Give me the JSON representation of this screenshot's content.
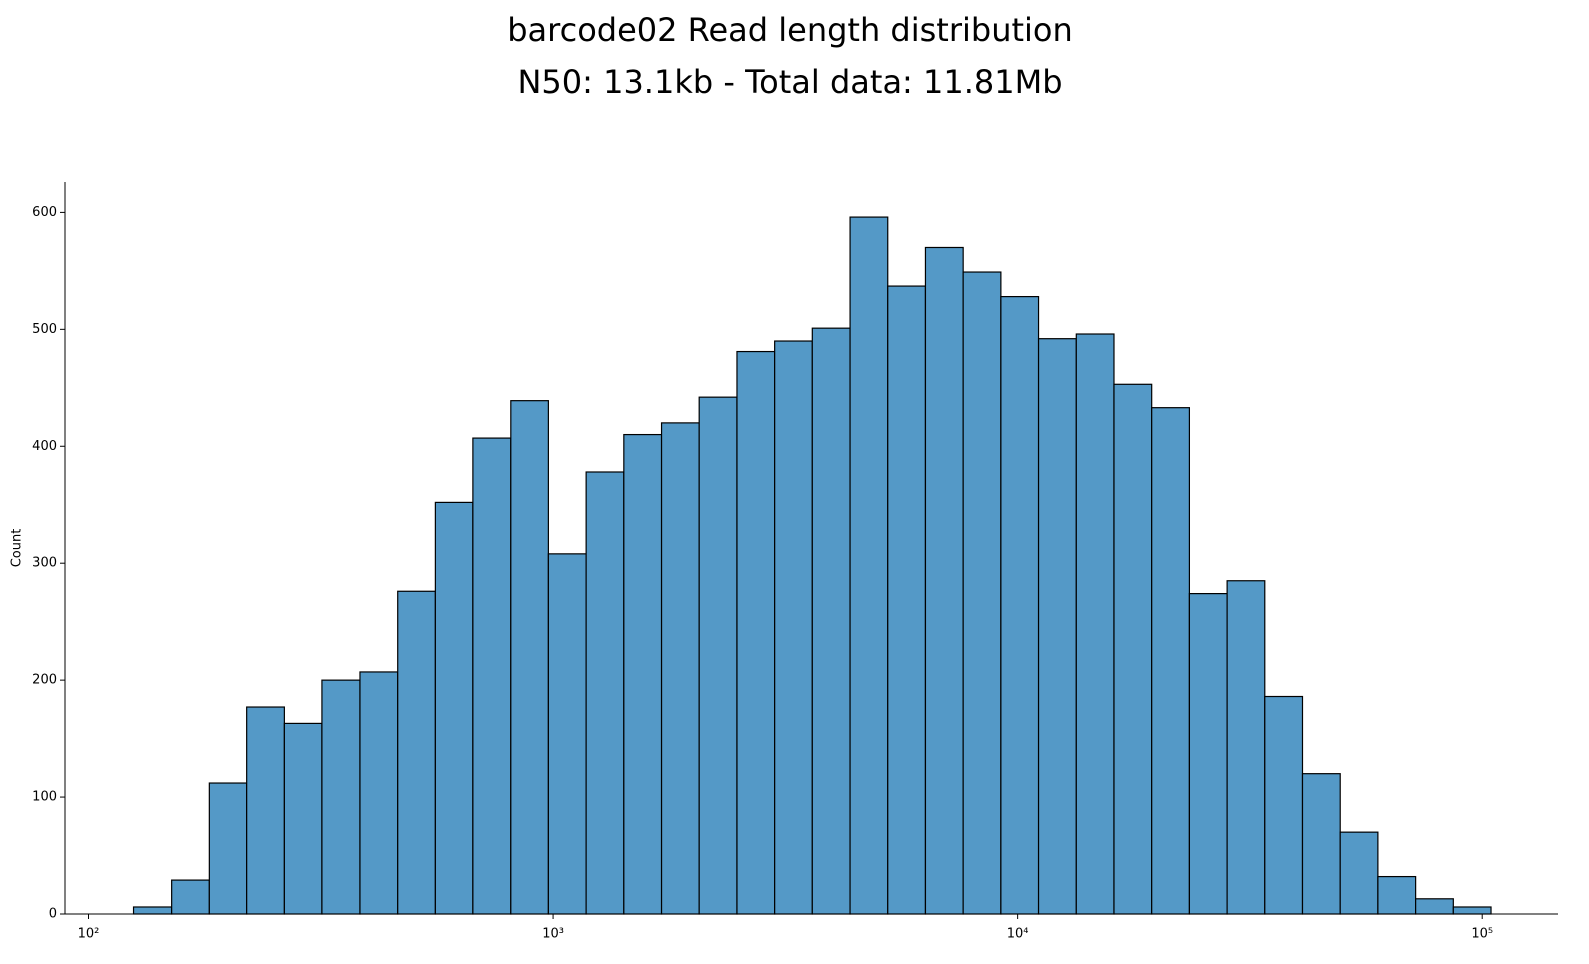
{
  "chart_data": {
    "type": "histogram",
    "title": "barcode02 Read length distribution\nN50: 13.1kb - Total data: 11.81Mb",
    "y_label": "Count",
    "bins": [
      125,
      151,
      182,
      219,
      264,
      318,
      384,
      463,
      558,
      672,
      811,
      977,
      1178,
      1420,
      1712,
      2063,
      2488,
      2999,
      3614,
      4358,
      5253,
      6332,
      7634,
      9203,
      11092,
      13374,
      16121,
      19434,
      23428,
      28243,
      34041,
      41037,
      49472,
      59630,
      71895,
      86663,
      104470
    ],
    "values": [
      6,
      29,
      112,
      177,
      163,
      200,
      207,
      276,
      352,
      407,
      439,
      308,
      378,
      410,
      420,
      442,
      481,
      490,
      501,
      596,
      537,
      570,
      549,
      528,
      492,
      496,
      453,
      433,
      274,
      285,
      186,
      120,
      70,
      32,
      13,
      6
    ],
    "color": "#5499c7",
    "xscale": "log",
    "xlim": [
      89,
      145600
    ],
    "xticks": [
      {
        "value": 100,
        "label": "10²"
      },
      {
        "value": 1000,
        "label": "10³"
      },
      {
        "value": 10000,
        "label": "10⁴"
      },
      {
        "value": 100000,
        "label": "10⁵"
      }
    ],
    "ylim": [
      0,
      626
    ],
    "yticks": [
      0,
      100,
      200,
      300,
      400,
      500,
      600
    ]
  }
}
